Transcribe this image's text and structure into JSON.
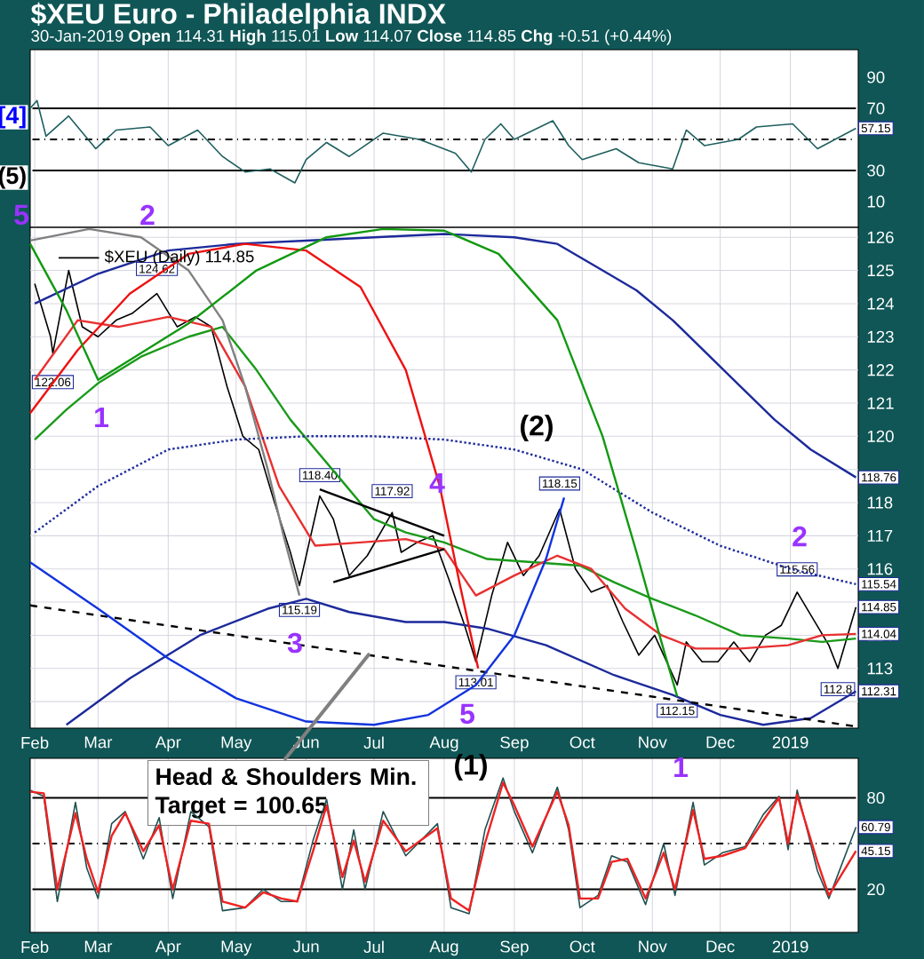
{
  "chart_data": [
    {
      "type": "line",
      "title": "$XEU Euro - Philadelphia INDX",
      "subtitle": "30-Jan-2019 **Open** 114.31 **High** 115.01 **Low** 114.07 **Close** 114.85 **Chg** +0.51 (+0.44%)",
      "xlim": [
        "2018-01-30",
        "2019-01-31"
      ],
      "ylim": [
        -6.6,
        107.7
      ],
      "yticks": [
        10,
        30,
        {
          "value": 50,
          "label": null
        },
        70,
        90
      ],
      "tick_labels": "y",
      "grid": "x",
      "x": [
        "2018-01-30",
        "2018-02-02",
        "2018-02-06",
        "2018-02-16",
        "2018-02-28",
        "2018-03-09",
        "2018-03-24",
        "2018-04-01",
        "2018-04-14",
        "2018-04-25",
        "2018-05-05",
        "2018-05-16",
        "2018-05-27",
        "2018-06-01",
        "2018-06-10",
        "2018-06-20",
        "2018-07-05",
        "2018-07-21",
        "2018-08-06",
        "2018-08-13",
        "2018-08-19",
        "2018-08-26",
        "2018-09-01",
        "2018-09-18",
        "2018-09-25",
        "2018-10-01",
        "2018-10-16",
        "2018-10-26",
        "2018-11-10",
        "2018-11-16",
        "2018-11-24",
        "2018-12-09",
        "2018-12-17",
        "2019-01-02",
        "2019-01-13",
        "2019-01-30"
      ],
      "series": [
        {
          "color": "#1f5f5f",
          "values": [
            70,
            75,
            52,
            65,
            44,
            56,
            58,
            46,
            56,
            39,
            29,
            31,
            22,
            37,
            48,
            39,
            54,
            50,
            41,
            29,
            50,
            60,
            50,
            62,
            46,
            37,
            44,
            35,
            31,
            56,
            46,
            50,
            58,
            60,
            44,
            57.15
          ]
        }
      ],
      "ref_lines": [
        {
          "axis": "y",
          "value": 70,
          "color": "#000000",
          "line_style": "solid"
        },
        {
          "axis": "y",
          "value": 50,
          "color": "#000000",
          "line_style": "dashdot"
        },
        {
          "axis": "y",
          "value": 30,
          "color": "#000000",
          "line_style": "solid"
        }
      ],
      "annotations": [
        "[4]",
        "(5)",
        {
          "text": "57.15",
          "x": "2019-01-30",
          "y": 57.15
        }
      ]
    },
    {
      "type": "line",
      "xlim": [
        "2018-01-30",
        "2019-01-31"
      ],
      "ylim": [
        111.2,
        126.3
      ],
      "yticks": [
        {
          "value": 112,
          "label": null
        },
        113,
        114,
        {
          "value": 115,
          "label": null
        },
        116,
        117,
        118,
        {
          "value": 119,
          "label": null
        },
        120,
        121,
        122,
        123,
        124,
        125,
        126
      ],
      "grid": true,
      "legend": "top left",
      "xticks": [
        {
          "value": "2018-02-01",
          "label": "Feb"
        },
        {
          "value": "2018-03-01",
          "label": "Mar"
        },
        {
          "value": "2018-04-01",
          "label": "Apr"
        },
        {
          "value": "2018-05-01",
          "label": "May"
        },
        {
          "value": "2018-06-01",
          "label": "Jun"
        },
        {
          "value": "2018-07-01",
          "label": "Jul"
        },
        {
          "value": "2018-08-01",
          "label": "Aug"
        },
        {
          "value": "2018-09-01",
          "label": "Sep"
        },
        {
          "value": "2018-10-01",
          "label": "Oct"
        },
        {
          "value": "2018-11-01",
          "label": "Nov"
        },
        {
          "value": "2018-12-01",
          "label": "Dec"
        },
        {
          "value": "2019-01-01",
          "label": "2019"
        }
      ],
      "series": [
        {
          "name": "$XEU (Daily) 114.85",
          "color": "#000000",
          "x": [
            "2018-02-01",
            "2018-02-08",
            "2018-02-09",
            "2018-02-16",
            "2018-02-22",
            "2018-03-01",
            "2018-03-09",
            "2018-03-16",
            "2018-03-27",
            "2018-04-05",
            "2018-04-13",
            "2018-04-20",
            "2018-04-27",
            "2018-05-04",
            "2018-05-11",
            "2018-05-18",
            "2018-05-25",
            "2018-05-29",
            "2018-06-07",
            "2018-06-13",
            "2018-06-20",
            "2018-06-28",
            "2018-07-09",
            "2018-07-13",
            "2018-07-20",
            "2018-07-27",
            "2018-08-03",
            "2018-08-10",
            "2018-08-15",
            "2018-08-22",
            "2018-08-29",
            "2018-09-05",
            "2018-09-12",
            "2018-09-21",
            "2018-09-28",
            "2018-10-05",
            "2018-10-12",
            "2018-10-19",
            "2018-10-26",
            "2018-11-02",
            "2018-11-12",
            "2018-11-16",
            "2018-11-23",
            "2018-11-30",
            "2018-12-07",
            "2018-12-14",
            "2018-12-21",
            "2018-12-28",
            "2019-01-04",
            "2019-01-11",
            "2019-01-18",
            "2019-01-22",
            "2019-01-30"
          ],
          "values": [
            124.6,
            123.0,
            122.5,
            125.0,
            123.3,
            123.0,
            123.5,
            123.7,
            124.3,
            123.3,
            123.6,
            123.3,
            121.5,
            120.0,
            119.6,
            118.0,
            116.5,
            115.5,
            118.2,
            117.5,
            115.8,
            116.4,
            117.7,
            116.5,
            116.8,
            117.0,
            115.7,
            114.3,
            113.2,
            115.2,
            116.8,
            115.8,
            116.4,
            117.8,
            116.0,
            115.3,
            115.5,
            114.4,
            113.4,
            114.0,
            112.5,
            113.8,
            113.2,
            113.2,
            113.8,
            113.2,
            114.0,
            114.3,
            115.3,
            114.5,
            113.7,
            113.0,
            114.85
          ]
        },
        {
          "color": "#1a9a1a",
          "x": [
            "2018-02-01",
            "2018-02-15",
            "2018-03-01",
            "2018-03-20",
            "2018-04-10",
            "2018-04-25",
            "2018-05-10",
            "2018-05-25",
            "2018-06-15",
            "2018-07-01",
            "2018-07-15",
            "2018-08-01",
            "2018-08-20",
            "2018-09-10",
            "2018-09-30",
            "2018-10-15",
            "2018-11-01",
            "2018-11-20",
            "2018-12-10",
            "2018-12-31",
            "2019-01-15",
            "2019-01-30"
          ],
          "values": [
            119.9,
            120.8,
            121.6,
            122.4,
            123.0,
            123.3,
            122.0,
            120.5,
            118.8,
            117.5,
            117.1,
            116.8,
            116.3,
            116.2,
            116.1,
            115.6,
            115.1,
            114.6,
            114.0,
            113.9,
            113.8,
            113.9
          ]
        },
        {
          "color": "#e83030",
          "x": [
            "2018-02-01",
            "2018-02-20",
            "2018-03-10",
            "2018-04-01",
            "2018-04-20",
            "2018-05-05",
            "2018-05-20",
            "2018-06-05",
            "2018-06-25",
            "2018-07-15",
            "2018-08-01",
            "2018-08-15",
            "2018-09-01",
            "2018-09-20",
            "2018-10-05",
            "2018-10-20",
            "2018-11-05",
            "2018-11-20",
            "2018-12-10",
            "2018-12-31",
            "2019-01-15",
            "2019-01-30"
          ],
          "values": [
            121.7,
            123.5,
            123.3,
            123.6,
            123.3,
            121.5,
            118.5,
            116.7,
            116.8,
            116.9,
            116.6,
            115.2,
            115.8,
            116.4,
            116.0,
            114.8,
            114.0,
            113.6,
            113.6,
            113.7,
            114.0,
            114.04
          ]
        },
        {
          "color": "#1c2a9a",
          "x": [
            "2018-02-01",
            "2018-03-01",
            "2018-04-01",
            "2018-05-01",
            "2018-06-01",
            "2018-07-01",
            "2018-08-01",
            "2018-09-01",
            "2018-09-20",
            "2018-10-10",
            "2018-10-25",
            "2018-11-10",
            "2018-11-25",
            "2018-12-10",
            "2018-12-25",
            "2019-01-10",
            "2019-01-30"
          ],
          "values": [
            124.0,
            124.9,
            125.6,
            125.8,
            125.9,
            126.0,
            126.1,
            126.0,
            125.8,
            125.0,
            124.4,
            123.5,
            122.5,
            121.5,
            120.5,
            119.6,
            118.76
          ]
        },
        {
          "color": "#1c2a9a",
          "line_style": "dotted",
          "x": [
            "2018-02-01",
            "2018-03-01",
            "2018-04-01",
            "2018-05-01",
            "2018-06-01",
            "2018-07-01",
            "2018-08-01",
            "2018-09-01",
            "2018-10-01",
            "2018-11-01",
            "2018-12-01",
            "2019-01-01",
            "2019-01-30"
          ],
          "values": [
            117.1,
            118.5,
            119.6,
            119.9,
            120.0,
            120.0,
            119.9,
            119.6,
            119.0,
            117.7,
            116.7,
            116.0,
            115.54
          ]
        },
        {
          "color": "#1c2a9a",
          "x": [
            "2018-02-15",
            "2018-03-15",
            "2018-04-15",
            "2018-05-15",
            "2018-06-01",
            "2018-06-20",
            "2018-07-15",
            "2018-08-01",
            "2018-08-20",
            "2018-09-15",
            "2018-10-15",
            "2018-11-10",
            "2018-12-01",
            "2018-12-20",
            "2019-01-10",
            "2019-01-30"
          ],
          "values": [
            111.3,
            112.7,
            114.0,
            114.8,
            115.1,
            114.7,
            114.4,
            114.4,
            114.2,
            113.7,
            112.8,
            112.2,
            111.6,
            111.3,
            111.5,
            112.31
          ]
        },
        {
          "color": "#000000",
          "line_style": "dashed",
          "x": [
            "2018-01-30",
            "2019-01-30"
          ],
          "values": [
            114.9,
            111.25
          ]
        },
        {
          "color": "#000000",
          "x": [
            "2018-06-07",
            "2018-08-01"
          ],
          "values": [
            118.4,
            117.0
          ]
        },
        {
          "color": "#000000",
          "x": [
            "2018-06-13",
            "2018-08-01"
          ],
          "values": [
            115.6,
            116.6
          ]
        },
        {
          "color": "#808080",
          "x": [
            "2018-01-30",
            "2018-02-25",
            "2018-03-20",
            "2018-04-10",
            "2018-04-25",
            "2018-05-05",
            "2018-05-15",
            "2018-05-22",
            "2018-05-29"
          ],
          "values": [
            125.9,
            126.25,
            126.0,
            125.0,
            123.5,
            121.5,
            119.0,
            117.0,
            115.2
          ]
        },
        {
          "color": "#ee1111",
          "x": [
            "2018-01-30",
            "2018-02-20",
            "2018-03-15",
            "2018-04-10",
            "2018-05-05",
            "2018-06-01",
            "2018-06-25",
            "2018-07-15",
            "2018-07-30",
            "2018-08-08",
            "2018-08-16"
          ],
          "values": [
            120.7,
            122.6,
            124.3,
            125.5,
            125.8,
            125.6,
            124.5,
            122.0,
            118.5,
            115.5,
            113.0
          ]
        },
        {
          "color": "#119911",
          "x": [
            "2018-01-30",
            "2018-02-15",
            "2018-03-01",
            "2018-04-10",
            "2018-05-10",
            "2018-06-10",
            "2018-07-05",
            "2018-08-01",
            "2018-08-25",
            "2018-09-20",
            "2018-10-10",
            "2018-10-25",
            "2018-11-05",
            "2018-11-12"
          ],
          "values": [
            125.8,
            123.8,
            121.7,
            123.4,
            125.0,
            126.0,
            126.25,
            126.2,
            125.5,
            123.5,
            120.0,
            116.5,
            113.8,
            112.15
          ]
        },
        {
          "color": "#1133dd",
          "x": [
            "2018-01-30",
            "2018-03-01",
            "2018-04-01",
            "2018-05-01",
            "2018-06-01",
            "2018-07-01",
            "2018-07-25",
            "2018-08-15",
            "2018-09-01",
            "2018-09-15",
            "2018-09-23"
          ],
          "values": [
            116.2,
            114.8,
            113.3,
            112.1,
            111.4,
            111.3,
            111.6,
            112.5,
            114.0,
            116.3,
            118.15
          ]
        }
      ],
      "annotations": [
        "5",
        "2",
        "1",
        "3",
        "4",
        "5",
        "(2)",
        "2",
        {
          "text": "122.06",
          "x": "2018-02-09",
          "y": 122.06
        },
        {
          "text": "124.62",
          "x": "2018-03-27",
          "y": 124.62
        },
        {
          "text": "115.19",
          "x": "2018-05-29",
          "y": 115.19
        },
        {
          "text": "118.40",
          "x": "2018-06-07",
          "y": 118.4
        },
        {
          "text": "117.92",
          "x": "2018-07-09",
          "y": 117.92
        },
        {
          "text": "113.01",
          "x": "2018-08-15",
          "y": 113.01
        },
        {
          "text": "118.15",
          "x": "2018-09-21",
          "y": 118.15
        },
        {
          "text": "112.15",
          "x": "2018-11-12",
          "y": 112.15
        },
        {
          "text": "115.56",
          "x": "2019-01-04",
          "y": 115.56
        },
        {
          "text": "112.8",
          "x": "2019-01-22",
          "y": 112.8
        },
        {
          "text": "118.76",
          "x": "2019-01-30",
          "y": 118.76
        },
        {
          "text": "115.54",
          "x": "2019-01-30",
          "y": 115.54
        },
        {
          "text": "114.85",
          "x": "2019-01-30",
          "y": 114.85
        },
        {
          "text": "114.04",
          "x": "2019-01-30",
          "y": 114.04
        },
        {
          "text": "112.31",
          "x": "2019-01-30",
          "y": 112.31
        }
      ]
    },
    {
      "type": "line",
      "xlim": [
        "2018-01-30",
        "2019-01-31"
      ],
      "ylim": [
        -8.2,
        105.9
      ],
      "yticks": [
        20,
        {
          "value": 50,
          "label": null
        },
        80
      ],
      "grid": true,
      "xticks": [
        {
          "value": "2018-02-01",
          "label": "Feb"
        },
        {
          "value": "2018-03-01",
          "label": "Mar"
        },
        {
          "value": "2018-04-01",
          "label": "Apr"
        },
        {
          "value": "2018-05-01",
          "label": "May"
        },
        {
          "value": "2018-06-01",
          "label": "Jun"
        },
        {
          "value": "2018-07-01",
          "label": "Jul"
        },
        {
          "value": "2018-08-01",
          "label": "Aug"
        },
        {
          "value": "2018-09-01",
          "label": "Sep"
        },
        {
          "value": "2018-10-01",
          "label": "Oct"
        },
        {
          "value": "2018-11-01",
          "label": "Nov"
        },
        {
          "value": "2018-12-01",
          "label": "Dec"
        },
        {
          "value": "2019-01-01",
          "label": "2019"
        }
      ],
      "x": [
        "2018-01-30",
        "2018-02-05",
        "2018-02-11",
        "2018-02-19",
        "2018-02-24",
        "2018-03-01",
        "2018-03-07",
        "2018-03-13",
        "2018-03-21",
        "2018-03-28",
        "2018-04-03",
        "2018-04-11",
        "2018-04-19",
        "2018-04-25",
        "2018-05-05",
        "2018-05-13",
        "2018-05-21",
        "2018-05-28",
        "2018-06-04",
        "2018-06-10",
        "2018-06-17",
        "2018-06-22",
        "2018-06-27",
        "2018-07-05",
        "2018-07-15",
        "2018-07-29",
        "2018-08-04",
        "2018-08-12",
        "2018-08-19",
        "2018-08-27",
        "2018-09-01",
        "2018-09-09",
        "2018-09-20",
        "2018-09-25",
        "2018-09-30",
        "2018-10-08",
        "2018-10-14",
        "2018-10-21",
        "2018-10-29",
        "2018-11-06",
        "2018-11-11",
        "2018-11-19",
        "2018-11-24",
        "2018-12-02",
        "2018-12-12",
        "2018-12-20",
        "2018-12-27",
        "2018-12-31",
        "2019-01-04",
        "2019-01-13",
        "2019-01-18",
        "2019-01-30"
      ],
      "series": [
        {
          "color": "#1f5050",
          "values": [
            85,
            81,
            12,
            77,
            34,
            14,
            63,
            71,
            40,
            67,
            14,
            71,
            61,
            6,
            8,
            20,
            12,
            12,
            52,
            79,
            20,
            59,
            20,
            71,
            42,
            63,
            8,
            4,
            59,
            93,
            71,
            44,
            87,
            59,
            8,
            16,
            42,
            38,
            10,
            50,
            16,
            77,
            36,
            44,
            48,
            69,
            81,
            46,
            85,
            32,
            14,
            60.79
          ]
        },
        {
          "color": "#ee2222",
          "values": [
            84,
            83,
            20,
            70,
            40,
            18,
            55,
            70,
            45,
            62,
            20,
            65,
            63,
            12,
            8,
            18,
            14,
            12,
            45,
            75,
            28,
            52,
            25,
            65,
            45,
            60,
            14,
            6,
            50,
            90,
            75,
            48,
            84,
            62,
            14,
            14,
            38,
            40,
            14,
            44,
            20,
            72,
            40,
            42,
            47,
            65,
            80,
            50,
            82,
            38,
            16,
            45.15
          ]
        }
      ],
      "ref_lines": [
        {
          "axis": "y",
          "value": 80,
          "color": "#000000",
          "line_style": "solid"
        },
        {
          "axis": "y",
          "value": 50,
          "color": "#000000",
          "line_style": "dashdot"
        },
        {
          "axis": "y",
          "value": 20,
          "color": "#000000",
          "line_style": "solid"
        }
      ],
      "annotations": [
        "Head & Shoulders Min. Target = 100.65",
        "(1)",
        "1",
        {
          "text": "60.79",
          "x": "2019-01-30",
          "y": 60.79
        },
        {
          "text": "45.15",
          "x": "2019-01-30",
          "y": 45.15
        }
      ]
    }
  ]
}
